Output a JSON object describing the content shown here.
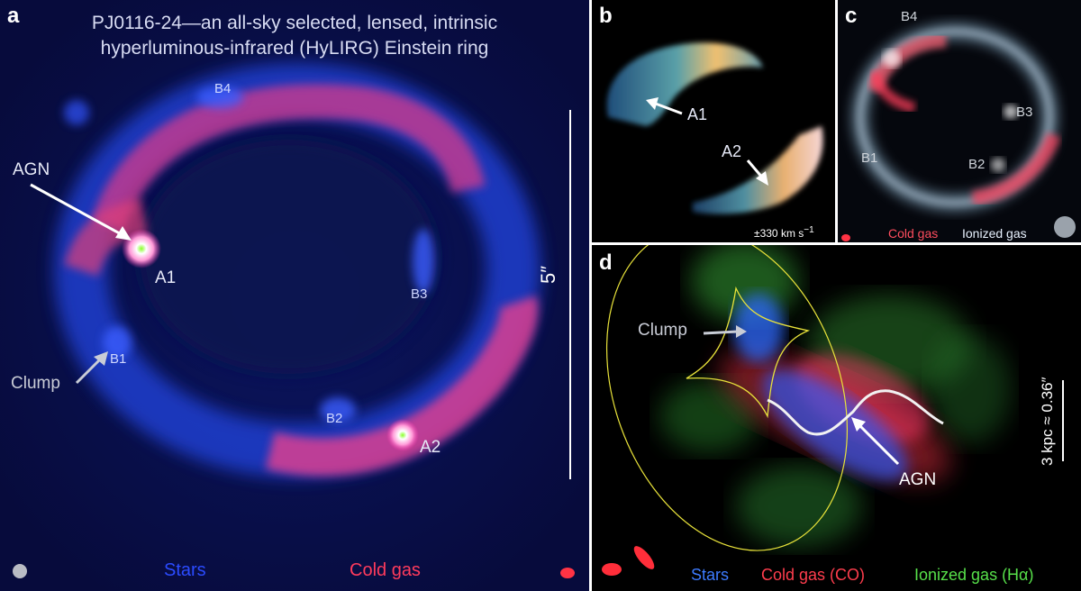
{
  "panel_a": {
    "label": "a",
    "title_line1": "PJ0116-24—an all-sky selected, lensed, intrinsic",
    "title_line2": "hyperluminous-infrared (HyLIRG) Einstein ring",
    "labels": {
      "agn": "AGN",
      "a1": "A1",
      "a2": "A2",
      "b1": "B1",
      "b2": "B2",
      "b3": "B3",
      "b4": "B4",
      "clump": "Clump"
    },
    "scale": "5″",
    "legend": {
      "stars": "Stars",
      "cold_gas": "Cold gas"
    },
    "colors": {
      "stars": "#2b4bff",
      "cold_gas": "#ff3b5c",
      "background": "#0a0f4e"
    }
  },
  "panel_b": {
    "label": "b",
    "labels": {
      "a1": "A1",
      "a2": "A2"
    },
    "velocity_range": "±330 km s",
    "velocity_unit_exp": "−1"
  },
  "panel_c": {
    "label": "c",
    "labels": {
      "b1": "B1",
      "b2": "B2",
      "b3": "B3",
      "b4": "B4"
    },
    "legend": {
      "cold_gas": "Cold gas",
      "ionized_gas": "Ionized gas"
    },
    "colors": {
      "cold_gas": "#ff4d5e",
      "ionized_gas": "#e8f2ff"
    }
  },
  "panel_d": {
    "label": "d",
    "labels": {
      "clump": "Clump",
      "agn": "AGN"
    },
    "scale": "3 kpc ≈ 0.36″",
    "legend": {
      "stars": "Stars",
      "cold_gas": "Cold gas (CO)",
      "ionized_gas": "Ionized gas (Hα)"
    },
    "colors": {
      "stars": "#3d7bff",
      "cold_gas": "#ff3d4d",
      "ionized_gas": "#57e04a",
      "caustic": "#e8e23a"
    }
  }
}
